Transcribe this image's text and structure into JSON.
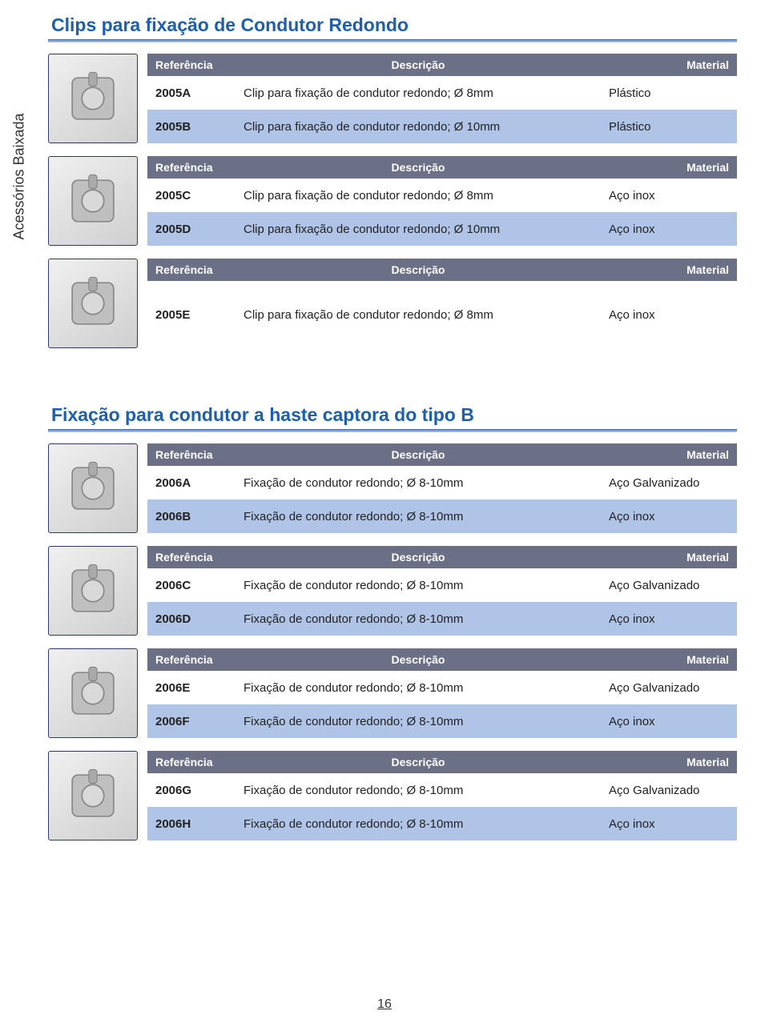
{
  "side_tab": "Acessórios Baixada",
  "page_number": "16",
  "headers": {
    "ref": "Referência",
    "desc": "Descrição",
    "mat": "Material"
  },
  "sections": [
    {
      "title": "Clips para fixação de Condutor Redondo",
      "blocks": [
        {
          "has_thumb": true,
          "rows": [
            {
              "ref": "2005A",
              "desc": "Clip para fixação de condutor redondo; Ø 8mm",
              "mat": "Plástico"
            },
            {
              "ref": "2005B",
              "desc": "Clip para fixação de condutor redondo; Ø 10mm",
              "mat": "Plástico"
            }
          ]
        },
        {
          "has_thumb": true,
          "rows": [
            {
              "ref": "2005C",
              "desc": "Clip para fixação de condutor redondo; Ø 8mm",
              "mat": "Aço inox"
            },
            {
              "ref": "2005D",
              "desc": "Clip para fixação de condutor redondo; Ø 10mm",
              "mat": "Aço inox"
            }
          ]
        },
        {
          "has_thumb": true,
          "rows": [
            {
              "ref": "2005E",
              "desc": "Clip para fixação de condutor redondo; Ø 8mm",
              "mat": "Aço inox"
            }
          ]
        }
      ]
    },
    {
      "title": "Fixação para condutor a haste captora do tipo B",
      "blocks": [
        {
          "has_thumb": true,
          "rows": [
            {
              "ref": "2006A",
              "desc": "Fixação de condutor redondo; Ø 8-10mm",
              "mat": "Aço Galvanizado"
            },
            {
              "ref": "2006B",
              "desc": "Fixação de condutor redondo; Ø 8-10mm",
              "mat": "Aço inox"
            }
          ]
        },
        {
          "has_thumb": true,
          "rows": [
            {
              "ref": "2006C",
              "desc": "Fixação de condutor redondo; Ø 8-10mm",
              "mat": "Aço Galvanizado"
            },
            {
              "ref": "2006D",
              "desc": "Fixação de condutor redondo; Ø 8-10mm",
              "mat": "Aço inox"
            }
          ]
        },
        {
          "has_thumb": true,
          "rows": [
            {
              "ref": "2006E",
              "desc": "Fixação de condutor redondo; Ø 8-10mm",
              "mat": "Aço Galvanizado"
            },
            {
              "ref": "2006F",
              "desc": "Fixação de condutor redondo; Ø 8-10mm",
              "mat": "Aço inox"
            }
          ]
        },
        {
          "has_thumb": true,
          "rows": [
            {
              "ref": "2006G",
              "desc": "Fixação de condutor redondo; Ø 8-10mm",
              "mat": "Aço Galvanizado"
            },
            {
              "ref": "2006H",
              "desc": "Fixação de condutor redondo; Ø 8-10mm",
              "mat": "Aço inox"
            }
          ]
        }
      ]
    }
  ],
  "colors": {
    "title": "#1a5fb4",
    "header_bg": "#6c7086",
    "row_even_bg": "#afc4e6",
    "rule_top": "#6a8fc9",
    "rule_bottom": "#b7c7e0"
  }
}
